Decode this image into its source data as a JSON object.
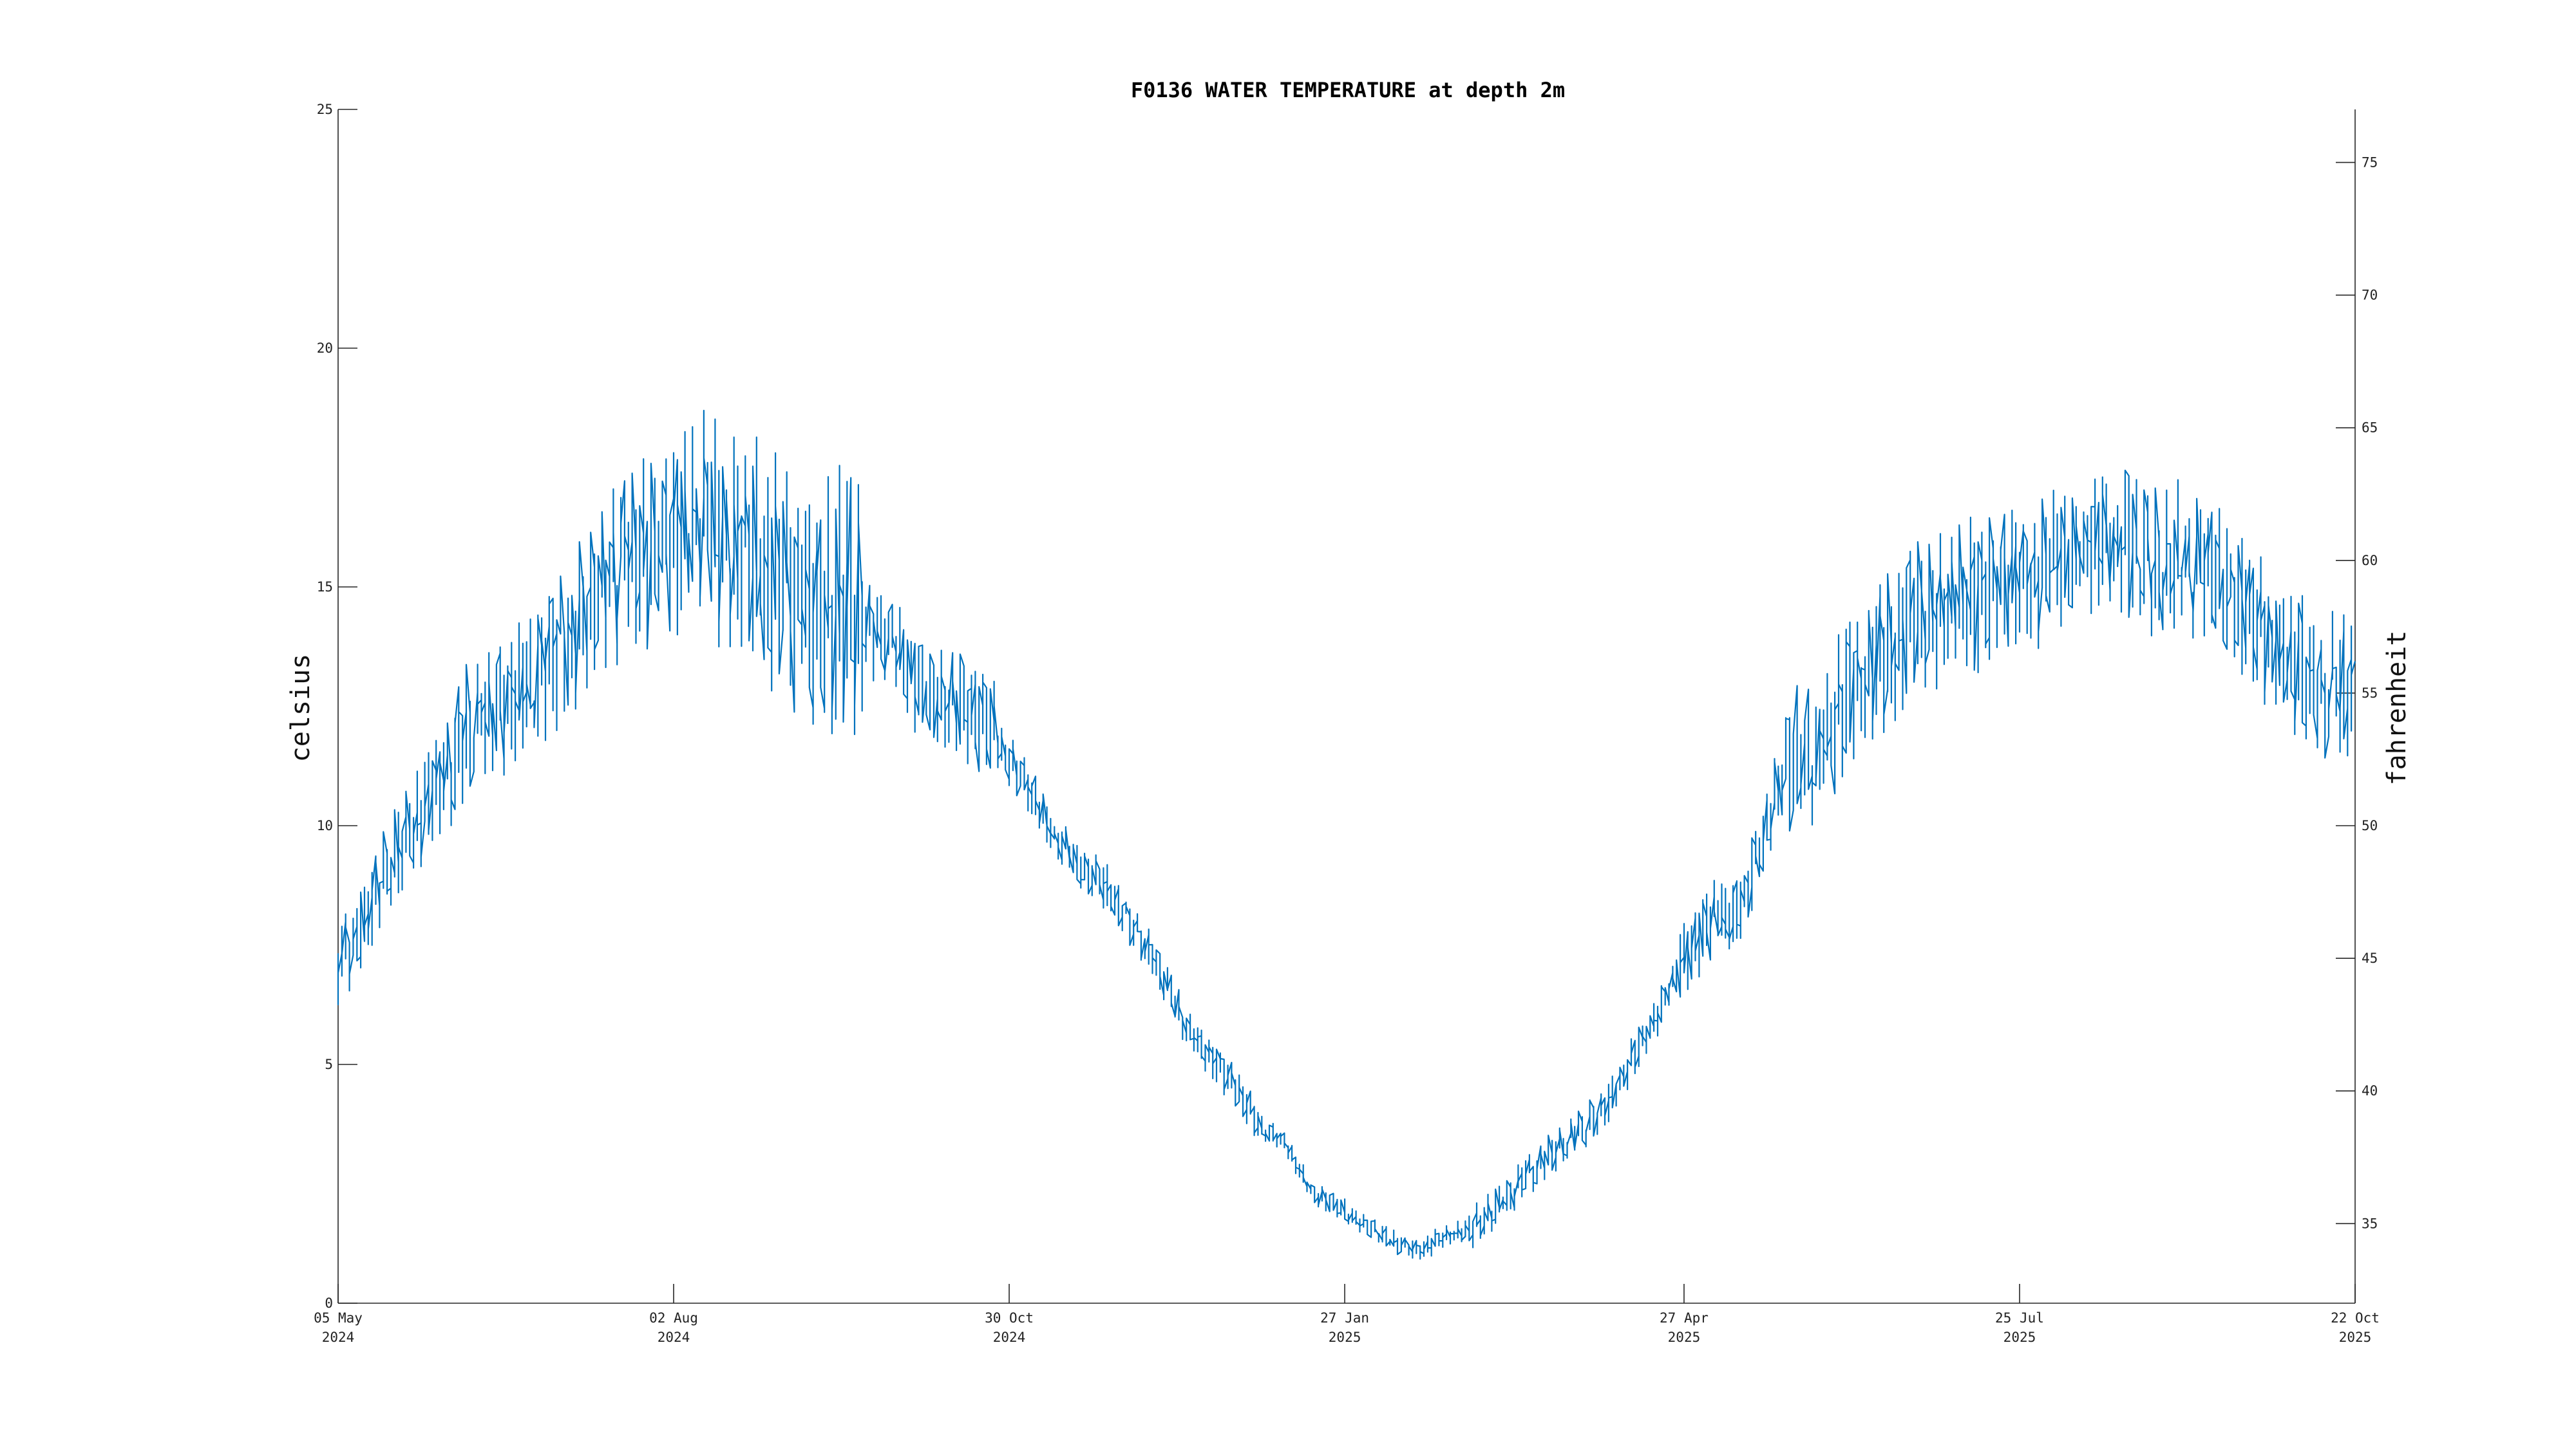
{
  "chart_data": {
    "type": "line",
    "title": "F0136 WATER TEMPERATURE at depth 2m",
    "ylabel": "celsius",
    "y2label": "fahrenheit",
    "ylim": [
      0,
      25
    ],
    "y2lim": [
      32,
      77
    ],
    "xlim": [
      "2024-05-05",
      "2025-10-22"
    ],
    "grid": false,
    "legend": "none",
    "color": "#0072BD",
    "yticks": [
      0,
      5,
      10,
      15,
      20,
      25
    ],
    "y2ticks": [
      35,
      40,
      45,
      50,
      55,
      60,
      65,
      70,
      75
    ],
    "xticks": [
      {
        "date": "2024-05-05",
        "label1": "05 May",
        "label2": "2024"
      },
      {
        "date": "2024-08-02",
        "label1": "02 Aug",
        "label2": "2024"
      },
      {
        "date": "2024-10-30",
        "label1": "30 Oct",
        "label2": "2024"
      },
      {
        "date": "2025-01-27",
        "label1": "27 Jan",
        "label2": "2025"
      },
      {
        "date": "2025-04-27",
        "label1": "27 Apr",
        "label2": "2025"
      },
      {
        "date": "2025-07-25",
        "label1": "25 Jul",
        "label2": "2025"
      },
      {
        "date": "2025-10-22",
        "label1": "22 Oct",
        "label2": "2025"
      }
    ],
    "series": [
      {
        "x": [
          "2024-05-05",
          "2024-05-12",
          "2024-05-19",
          "2024-05-26",
          "2024-06-02",
          "2024-06-09",
          "2024-06-16",
          "2024-06-23",
          "2024-06-30",
          "2024-07-07",
          "2024-07-14",
          "2024-07-21",
          "2024-07-28",
          "2024-08-04",
          "2024-08-11",
          "2024-08-18",
          "2024-08-25",
          "2024-09-01",
          "2024-09-08",
          "2024-09-15",
          "2024-09-22",
          "2024-09-29",
          "2024-10-06",
          "2024-10-13",
          "2024-10-20",
          "2024-10-27",
          "2024-11-03",
          "2024-11-10",
          "2024-11-17",
          "2024-11-24",
          "2024-12-01",
          "2024-12-08",
          "2024-12-15",
          "2024-12-22",
          "2024-12-29",
          "2025-01-05",
          "2025-01-12",
          "2025-01-19",
          "2025-01-26",
          "2025-02-02",
          "2025-02-09",
          "2025-02-16",
          "2025-02-23",
          "2025-03-02",
          "2025-03-09",
          "2025-03-16",
          "2025-03-23",
          "2025-03-30",
          "2025-04-06",
          "2025-04-13",
          "2025-04-20",
          "2025-04-27",
          "2025-05-04",
          "2025-05-11",
          "2025-05-18",
          "2025-05-25",
          "2025-06-01",
          "2025-06-08",
          "2025-06-15",
          "2025-06-22",
          "2025-06-29",
          "2025-07-06",
          "2025-07-13",
          "2025-07-20",
          "2025-07-27",
          "2025-08-03",
          "2025-08-10",
          "2025-08-17",
          "2025-08-24",
          "2025-08-31",
          "2025-09-07",
          "2025-09-14",
          "2025-09-21",
          "2025-09-28",
          "2025-10-05",
          "2025-10-12",
          "2025-10-19",
          "2025-10-22"
        ],
        "y": [
          7.0,
          8.0,
          9.0,
          10.0,
          11.0,
          12.0,
          12.5,
          12.8,
          13.5,
          14.0,
          15.0,
          15.5,
          15.8,
          16.2,
          16.5,
          15.8,
          15.6,
          15.2,
          14.8,
          14.6,
          14.3,
          13.8,
          13.0,
          12.6,
          12.4,
          11.8,
          11.0,
          10.0,
          9.3,
          8.8,
          8.0,
          7.2,
          6.0,
          5.2,
          4.6,
          3.7,
          3.3,
          2.3,
          2.0,
          1.6,
          1.3,
          1.1,
          1.4,
          1.6,
          2.0,
          2.6,
          3.1,
          3.6,
          4.0,
          5.0,
          6.0,
          7.2,
          8.0,
          8.2,
          9.5,
          11.5,
          11.2,
          12.5,
          13.3,
          13.8,
          14.4,
          14.6,
          14.8,
          15.0,
          15.2,
          15.4,
          15.6,
          16.0,
          15.8,
          15.5,
          15.6,
          15.4,
          14.8,
          14.2,
          13.6,
          13.0,
          12.8,
          12.7
        ]
      }
    ],
    "x_origin": "2024-05-05",
    "x_end": "2025-10-22"
  }
}
